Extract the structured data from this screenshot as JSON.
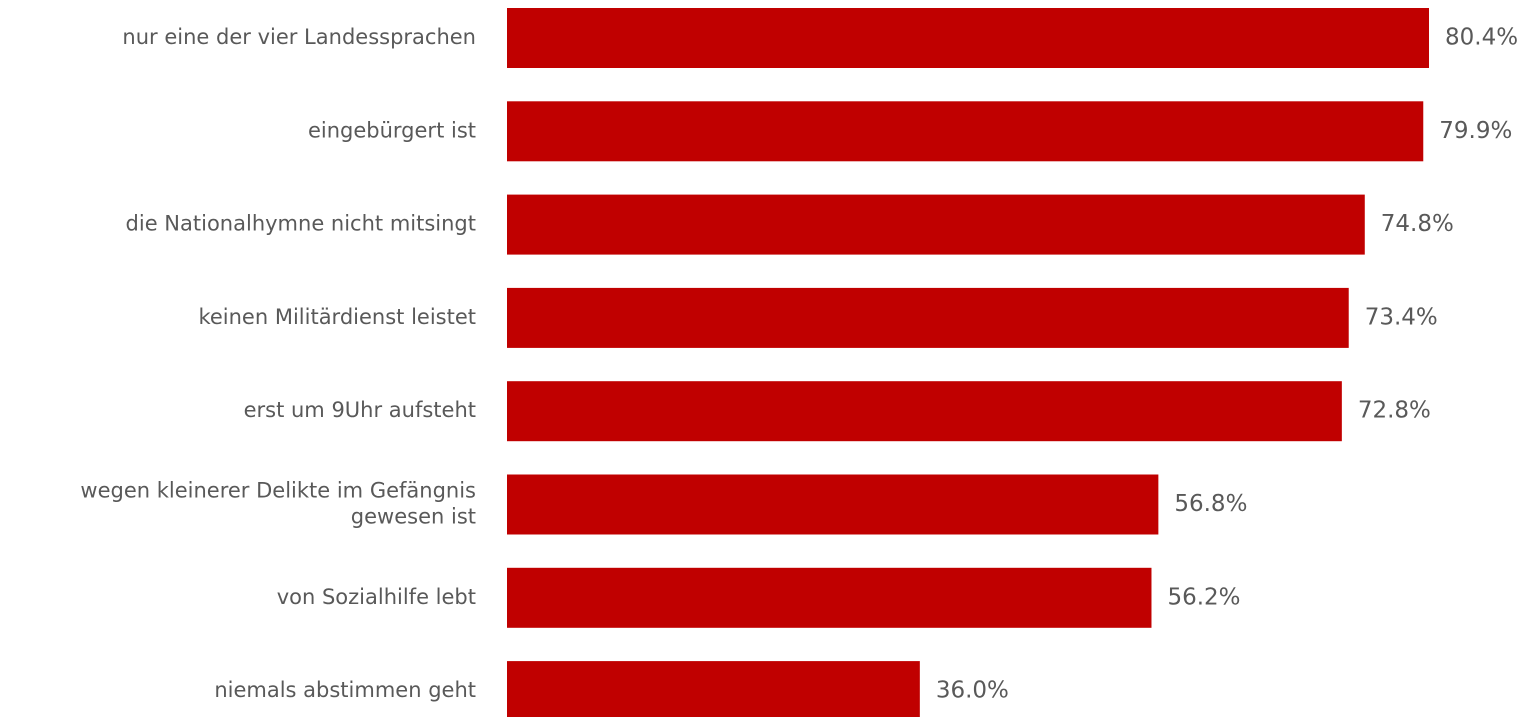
{
  "chart_data": {
    "type": "bar",
    "orientation": "horizontal",
    "categories": [
      [
        "nur eine der vier Landessprachen"
      ],
      [
        "eingebürgert ist"
      ],
      [
        "die Nationalhymne nicht mitsingt"
      ],
      [
        "keinen Militärdienst leistet"
      ],
      [
        "erst um 9Uhr aufsteht"
      ],
      [
        "wegen kleinerer Delikte im Gefängnis",
        "gewesen ist"
      ],
      [
        "von Sozialhilfe lebt"
      ],
      [
        "niemals abstimmen geht"
      ]
    ],
    "values": [
      80.4,
      79.9,
      74.8,
      73.4,
      72.8,
      56.8,
      56.2,
      36.0
    ],
    "value_labels": [
      "80.4%",
      "79.9%",
      "74.8%",
      "73.4%",
      "72.8%",
      "56.8%",
      "56.2%",
      "36.0%"
    ],
    "title": "",
    "xlabel": "",
    "ylabel": "",
    "xlim": [
      0,
      80.4
    ],
    "grid": false,
    "legend": "none",
    "bar_color": "#C00000",
    "text_color": "#595959"
  }
}
